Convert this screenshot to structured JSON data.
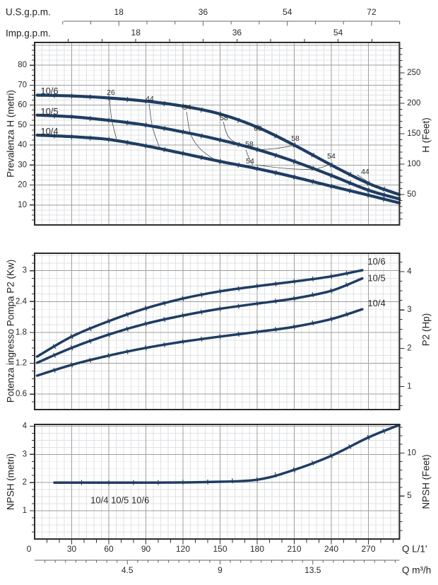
{
  "top_axes": {
    "us_gpm": {
      "label": "U.S.g.p.m.",
      "tick_labels": [
        18,
        36,
        54,
        72
      ]
    },
    "imp_gpm": {
      "label": "Imp.g.p.m.",
      "tick_labels": [
        18,
        36,
        54
      ]
    }
  },
  "bottom_axes": {
    "lmin": {
      "label": "Q L/1'",
      "tick_labels": [
        0,
        30,
        60,
        90,
        120,
        150,
        180,
        210,
        240,
        270
      ]
    },
    "m3h": {
      "label": "Q m³/h",
      "tick_labels": [
        4.5,
        9,
        13.5
      ]
    }
  },
  "chart_data": [
    {
      "type": "line",
      "name": "head-curves",
      "ylabel_left": "Prevalenza H (metri)",
      "ylabel_right": "H (Feet)",
      "xlabel": "Q L/1'",
      "xlim_lmin": [
        0,
        295
      ],
      "ylim_m": [
        0,
        91.4
      ],
      "y_ticks_left_m": [
        10,
        20,
        30,
        40,
        50,
        60,
        70,
        80
      ],
      "y_ticks_right_feet": [
        50,
        100,
        150,
        200,
        250
      ],
      "grid": true,
      "series": [
        {
          "name": "10/6",
          "label_at": [
            12,
            67.2
          ],
          "points": [
            [
              2,
              65
            ],
            [
              30,
              64.6
            ],
            [
              60,
              63.6
            ],
            [
              90,
              62
            ],
            [
              120,
              59.5
            ],
            [
              150,
              55.6
            ],
            [
              180,
              49
            ],
            [
              210,
              40
            ],
            [
              240,
              30
            ],
            [
              270,
              20.8
            ],
            [
              295,
              15.2
            ]
          ]
        },
        {
          "name": "10/5",
          "label_at": [
            12,
            56.9
          ],
          "points": [
            [
              2,
              55
            ],
            [
              30,
              54.2
            ],
            [
              60,
              52.4
            ],
            [
              90,
              50
            ],
            [
              120,
              46.6
            ],
            [
              150,
              42.6
            ],
            [
              180,
              37.8
            ],
            [
              210,
              31.8
            ],
            [
              240,
              24.8
            ],
            [
              270,
              17.4
            ],
            [
              295,
              13
            ]
          ]
        },
        {
          "name": "10/4",
          "label_at": [
            12,
            47.0
          ],
          "points": [
            [
              2,
              45
            ],
            [
              30,
              44.2
            ],
            [
              60,
              42.8
            ],
            [
              90,
              39.6
            ],
            [
              120,
              35.8
            ],
            [
              150,
              31.8
            ],
            [
              180,
              28.2
            ],
            [
              210,
              24
            ],
            [
              240,
              19.4
            ],
            [
              270,
              14.9
            ],
            [
              295,
              11
            ]
          ]
        }
      ],
      "efficiency_labels": [
        {
          "text": "26",
          "at": [
            61.7,
            66.2
          ]
        },
        {
          "text": "44",
          "at": [
            93.1,
            63.1
          ]
        },
        {
          "text": "54",
          "at": [
            123.4,
            58.8
          ]
        },
        {
          "text": "58",
          "at": [
            153.1,
            53.5
          ]
        },
        {
          "text": "60",
          "at": [
            180.6,
            48.2
          ]
        },
        {
          "text": "58",
          "at": [
            173.7,
            40.4
          ]
        },
        {
          "text": "58",
          "at": [
            210.9,
            43.2
          ]
        },
        {
          "text": "54",
          "at": [
            174.3,
            31.9
          ]
        },
        {
          "text": "54",
          "at": [
            240.0,
            34.4
          ]
        },
        {
          "text": "44",
          "at": [
            267.4,
            26.6
          ]
        }
      ],
      "efficiency_lines": [
        [
          [
            60.6,
            63.4
          ],
          [
            62.3,
            53.1
          ],
          [
            66.9,
            41.4
          ]
        ],
        [
          [
            92.6,
            60.6
          ],
          [
            95.4,
            48.9
          ],
          [
            101.7,
            37.6
          ]
        ],
        [
          [
            122.9,
            56.7
          ],
          [
            126.3,
            45.3
          ],
          [
            134.9,
            37.5
          ],
          [
            150.3,
            30.8
          ]
        ],
        [
          [
            152.6,
            51.7
          ],
          [
            156.6,
            44.3
          ],
          [
            166.3,
            40.0
          ],
          [
            176.0,
            37.9
          ]
        ],
        [
          [
            178.9,
            37.6
          ],
          [
            194.9,
            38.3
          ],
          [
            208.6,
            39.7
          ]
        ],
        [
          [
            178.9,
            30.1
          ],
          [
            203.4,
            28.3
          ],
          [
            226.3,
            28.0
          ],
          [
            240.6,
            30.8
          ]
        ],
        [
          [
            260.6,
            25.2
          ],
          [
            270.3,
            21.3
          ]
        ],
        [
          [
            170.9,
            37.6
          ],
          [
            173.1,
            34.0
          ],
          [
            176.6,
            29.8
          ]
        ]
      ]
    },
    {
      "type": "line",
      "name": "power-curves",
      "ylabel_left": "Potenza ingresso Pompa P2 (Kw)",
      "ylabel_right": "P2 (Hp)",
      "xlim_lmin": [
        0,
        295
      ],
      "ylim_kw": [
        0.3,
        3.34
      ],
      "y_ticks_left_kw": [
        0.6,
        1.2,
        1.8,
        2.4,
        3
      ],
      "y_ticks_right_hp": [
        1,
        2,
        3,
        4
      ],
      "grid": true,
      "series": [
        {
          "name": "10/6",
          "label_at": [
            276.6,
            3.18
          ],
          "points": [
            [
              2,
              1.33
            ],
            [
              30,
              1.72
            ],
            [
              60,
              2.02
            ],
            [
              90,
              2.27
            ],
            [
              120,
              2.46
            ],
            [
              150,
              2.6
            ],
            [
              180,
              2.7
            ],
            [
              210,
              2.79
            ],
            [
              240,
              2.89
            ],
            [
              265,
              3.01
            ]
          ]
        },
        {
          "name": "10/5",
          "label_at": [
            276.6,
            2.86
          ],
          "points": [
            [
              2,
              1.21
            ],
            [
              30,
              1.5
            ],
            [
              60,
              1.76
            ],
            [
              90,
              1.97
            ],
            [
              120,
              2.13
            ],
            [
              150,
              2.26
            ],
            [
              180,
              2.36
            ],
            [
              210,
              2.46
            ],
            [
              240,
              2.61
            ],
            [
              265,
              2.85
            ]
          ]
        },
        {
          "name": "10/4",
          "label_at": [
            276.6,
            2.37
          ],
          "points": [
            [
              2,
              0.96
            ],
            [
              30,
              1.17
            ],
            [
              60,
              1.35
            ],
            [
              90,
              1.5
            ],
            [
              120,
              1.62
            ],
            [
              150,
              1.72
            ],
            [
              180,
              1.81
            ],
            [
              210,
              1.91
            ],
            [
              240,
              2.06
            ],
            [
              265,
              2.25
            ]
          ]
        }
      ]
    },
    {
      "type": "line",
      "name": "npsh-curve",
      "ylabel_left": "NPSH (metri)",
      "ylabel_right": "NPSH (Feet)",
      "xlim_lmin": [
        0,
        295
      ],
      "ylim_m": [
        0,
        4.06
      ],
      "y_ticks_left_m": [
        1,
        2,
        3,
        4
      ],
      "y_ticks_right_feet": [
        5,
        10
      ],
      "grid": true,
      "series": [
        {
          "name": "10/4 10/5 10/6",
          "label_at": [
            69,
            1.38
          ],
          "points": [
            [
              16,
              2
            ],
            [
              60,
              2
            ],
            [
              100,
              2
            ],
            [
              140,
              2.02
            ],
            [
              180,
              2.1
            ],
            [
              210,
              2.45
            ],
            [
              240,
              2.95
            ],
            [
              270,
              3.6
            ],
            [
              295,
              4.04
            ]
          ]
        }
      ]
    }
  ],
  "colors": {
    "curve": "#1f3d63",
    "grid_minor": "#dfe1e5",
    "grid_major": "#9e9e9e",
    "border": "#2b2b2b",
    "iso_line": "#4a4a4a",
    "text": "#2a2a2a"
  }
}
